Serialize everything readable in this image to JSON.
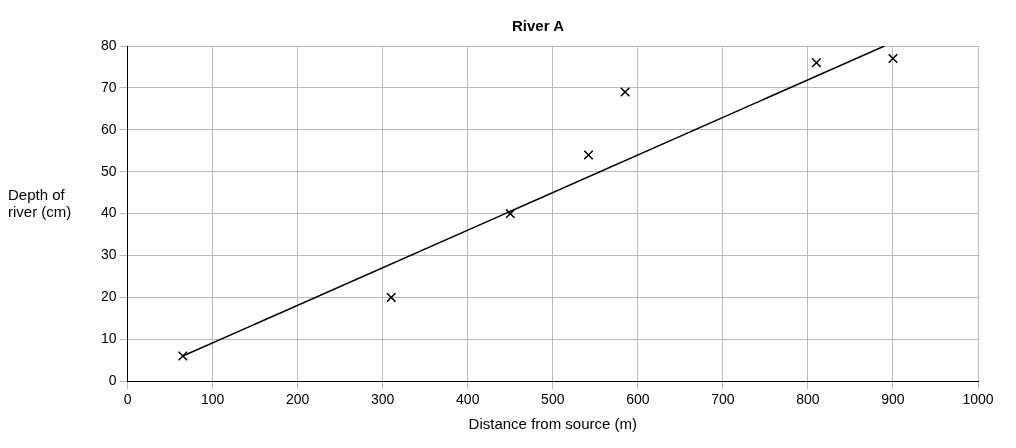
{
  "chart_data": {
    "type": "scatter",
    "title": "River A",
    "xlabel": "Distance from source (m)",
    "ylabel": "Depth of river (cm)",
    "series": [
      {
        "color": "#000000",
        "marker": "cross",
        "x": [
          65,
          310,
          450,
          542,
          585,
          810,
          900
        ],
        "values": [
          6,
          20,
          40,
          54,
          69,
          76,
          77
        ]
      },
      {
        "type": "line",
        "color": "#000000",
        "marker": "none",
        "x": [
          65,
          890
        ],
        "values": [
          6,
          80
        ]
      }
    ],
    "xlim": [
      0,
      1000
    ],
    "xticks": [
      0,
      100,
      200,
      300,
      400,
      500,
      600,
      700,
      800,
      900,
      1000
    ],
    "ylim": [
      0,
      80
    ],
    "yticks": [
      0,
      10,
      20,
      30,
      40,
      50,
      60,
      70,
      80
    ],
    "grid": true,
    "legend": false
  }
}
